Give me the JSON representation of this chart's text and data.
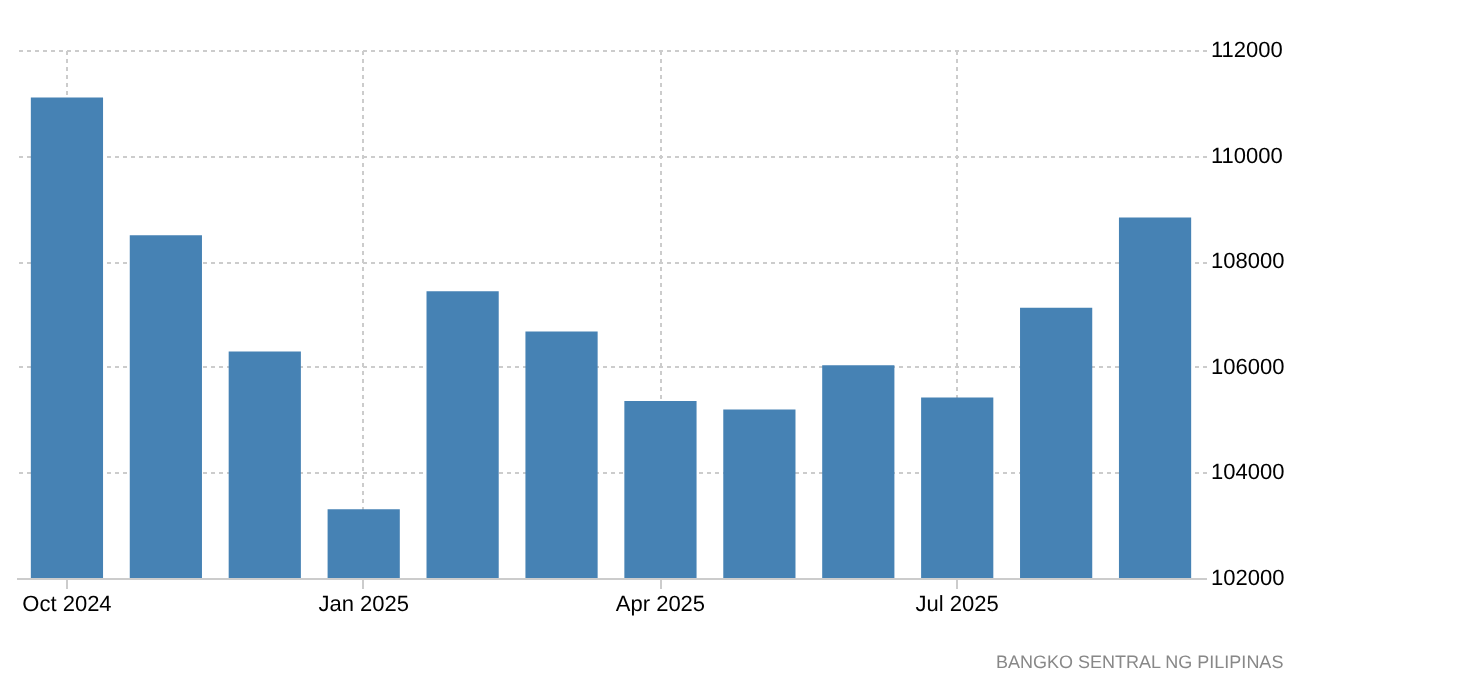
{
  "chart_data": {
    "type": "bar",
    "categories": [
      "Oct 2024",
      null,
      null,
      "Jan 2025",
      null,
      null,
      "Apr 2025",
      null,
      null,
      "Jul 2025",
      null,
      null
    ],
    "values": [
      111100,
      108490,
      106290,
      103300,
      107430,
      106670,
      105350,
      105190,
      106030,
      105420,
      107120,
      108830
    ],
    "color": "#4682b4",
    "ylim": [
      102000,
      112000
    ],
    "yticks": [
      102000,
      104000,
      106000,
      108000,
      110000,
      112000
    ],
    "grid": true,
    "annotations": [
      "BANGKO SENTRAL NG PILIPINAS"
    ]
  }
}
